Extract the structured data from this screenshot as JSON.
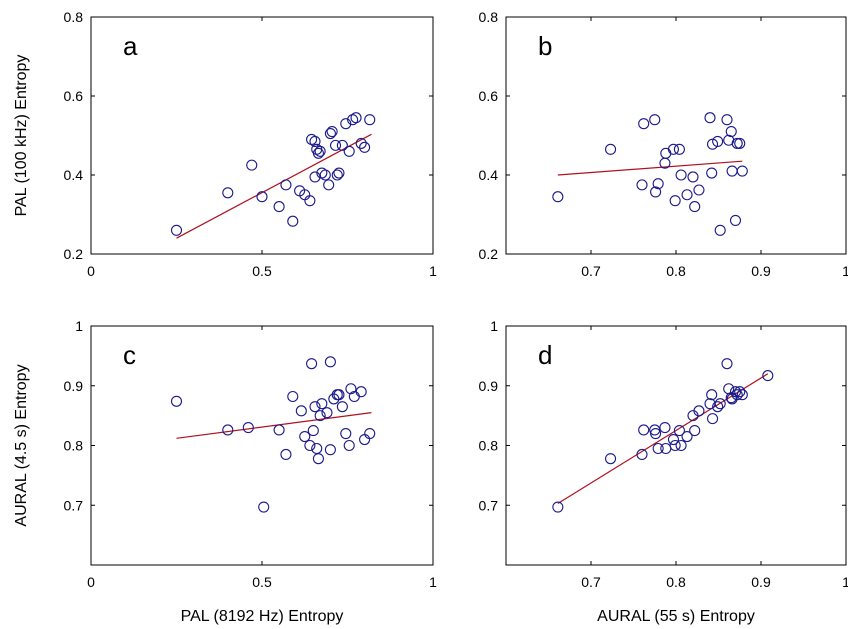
{
  "chart_data": [
    {
      "id": "a",
      "type": "scatter",
      "panel_label": "a",
      "xlim": [
        0,
        1
      ],
      "ylim": [
        0.2,
        0.8
      ],
      "xticks": [
        "0",
        "0.5",
        "1"
      ],
      "xtick_values": [
        0,
        0.5,
        1
      ],
      "yticks": [
        "0.2",
        "0.4",
        "0.6",
        "0.8"
      ],
      "ytick_values": [
        0.2,
        0.4,
        0.6,
        0.8
      ],
      "xlabel": "",
      "ylabel": "PAL (100 kHz) Entropy",
      "points": [
        [
          0.25,
          0.26
        ],
        [
          0.4,
          0.355
        ],
        [
          0.47,
          0.425
        ],
        [
          0.5,
          0.345
        ],
        [
          0.55,
          0.32
        ],
        [
          0.57,
          0.375
        ],
        [
          0.59,
          0.283
        ],
        [
          0.61,
          0.36
        ],
        [
          0.625,
          0.35
        ],
        [
          0.64,
          0.335
        ],
        [
          0.645,
          0.49
        ],
        [
          0.655,
          0.485
        ],
        [
          0.655,
          0.395
        ],
        [
          0.66,
          0.465
        ],
        [
          0.665,
          0.455
        ],
        [
          0.67,
          0.46
        ],
        [
          0.675,
          0.405
        ],
        [
          0.685,
          0.4
        ],
        [
          0.695,
          0.375
        ],
        [
          0.7,
          0.505
        ],
        [
          0.705,
          0.51
        ],
        [
          0.715,
          0.475
        ],
        [
          0.72,
          0.4
        ],
        [
          0.725,
          0.405
        ],
        [
          0.735,
          0.475
        ],
        [
          0.745,
          0.53
        ],
        [
          0.755,
          0.46
        ],
        [
          0.765,
          0.54
        ],
        [
          0.775,
          0.545
        ],
        [
          0.79,
          0.48
        ],
        [
          0.8,
          0.47
        ],
        [
          0.815,
          0.54
        ]
      ],
      "fit": [
        [
          0.25,
          0.24
        ],
        [
          0.82,
          0.503
        ]
      ]
    },
    {
      "id": "b",
      "type": "scatter",
      "panel_label": "b",
      "xlim": [
        0.6,
        1
      ],
      "ylim": [
        0.2,
        0.8
      ],
      "xticks": [
        "0.7",
        "0.8",
        "0.9",
        "1"
      ],
      "xtick_values": [
        0.7,
        0.8,
        0.9,
        1
      ],
      "yticks": [
        "0.2",
        "0.4",
        "0.6",
        "0.8"
      ],
      "ytick_values": [
        0.2,
        0.4,
        0.6,
        0.8
      ],
      "xlabel": "",
      "ylabel": "",
      "points": [
        [
          0.661,
          0.345
        ],
        [
          0.723,
          0.465
        ],
        [
          0.76,
          0.375
        ],
        [
          0.762,
          0.53
        ],
        [
          0.775,
          0.54
        ],
        [
          0.776,
          0.357
        ],
        [
          0.779,
          0.378
        ],
        [
          0.787,
          0.43
        ],
        [
          0.788,
          0.455
        ],
        [
          0.797,
          0.465
        ],
        [
          0.799,
          0.335
        ],
        [
          0.804,
          0.465
        ],
        [
          0.806,
          0.4
        ],
        [
          0.813,
          0.35
        ],
        [
          0.82,
          0.395
        ],
        [
          0.822,
          0.32
        ],
        [
          0.827,
          0.362
        ],
        [
          0.84,
          0.545
        ],
        [
          0.842,
          0.405
        ],
        [
          0.843,
          0.478
        ],
        [
          0.849,
          0.485
        ],
        [
          0.852,
          0.26
        ],
        [
          0.86,
          0.54
        ],
        [
          0.862,
          0.488
        ],
        [
          0.865,
          0.51
        ],
        [
          0.866,
          0.41
        ],
        [
          0.87,
          0.285
        ],
        [
          0.872,
          0.48
        ],
        [
          0.875,
          0.48
        ],
        [
          0.878,
          0.41
        ]
      ],
      "fit": [
        [
          0.661,
          0.4
        ],
        [
          0.878,
          0.435
        ]
      ]
    },
    {
      "id": "c",
      "type": "scatter",
      "panel_label": "c",
      "xlim": [
        0,
        1
      ],
      "ylim": [
        0.6,
        1
      ],
      "xticks": [
        "0",
        "0.5",
        "1"
      ],
      "xtick_values": [
        0,
        0.5,
        1
      ],
      "yticks": [
        "0.7",
        "0.8",
        "0.9",
        "1"
      ],
      "ytick_values": [
        0.7,
        0.8,
        0.9,
        1
      ],
      "xlabel": "PAL (8192 Hz) Entropy",
      "ylabel": "AURAL (4.5 s) Entropy",
      "points": [
        [
          0.25,
          0.874
        ],
        [
          0.4,
          0.826
        ],
        [
          0.46,
          0.83
        ],
        [
          0.505,
          0.697
        ],
        [
          0.55,
          0.826
        ],
        [
          0.57,
          0.785
        ],
        [
          0.59,
          0.882
        ],
        [
          0.615,
          0.858
        ],
        [
          0.625,
          0.815
        ],
        [
          0.64,
          0.8
        ],
        [
          0.645,
          0.937
        ],
        [
          0.65,
          0.825
        ],
        [
          0.655,
          0.865
        ],
        [
          0.66,
          0.795
        ],
        [
          0.665,
          0.778
        ],
        [
          0.67,
          0.85
        ],
        [
          0.675,
          0.87
        ],
        [
          0.69,
          0.855
        ],
        [
          0.7,
          0.94
        ],
        [
          0.7,
          0.793
        ],
        [
          0.71,
          0.878
        ],
        [
          0.72,
          0.885
        ],
        [
          0.725,
          0.885
        ],
        [
          0.735,
          0.865
        ],
        [
          0.745,
          0.82
        ],
        [
          0.755,
          0.8
        ],
        [
          0.76,
          0.895
        ],
        [
          0.77,
          0.882
        ],
        [
          0.79,
          0.89
        ],
        [
          0.8,
          0.81
        ],
        [
          0.815,
          0.82
        ]
      ],
      "fit": [
        [
          0.25,
          0.812
        ],
        [
          0.82,
          0.855
        ]
      ]
    },
    {
      "id": "d",
      "type": "scatter",
      "panel_label": "d",
      "xlim": [
        0.6,
        1
      ],
      "ylim": [
        0.6,
        1
      ],
      "xticks": [
        "0.7",
        "0.8",
        "0.9",
        "1"
      ],
      "xtick_values": [
        0.7,
        0.8,
        0.9,
        1
      ],
      "yticks": [
        "0.7",
        "0.8",
        "0.9",
        "1"
      ],
      "ytick_values": [
        0.7,
        0.8,
        0.9,
        1
      ],
      "xlabel": "AURAL (55 s) Entropy",
      "ylabel": "",
      "points": [
        [
          0.661,
          0.697
        ],
        [
          0.723,
          0.778
        ],
        [
          0.76,
          0.785
        ],
        [
          0.762,
          0.826
        ],
        [
          0.775,
          0.826
        ],
        [
          0.776,
          0.82
        ],
        [
          0.779,
          0.795
        ],
        [
          0.787,
          0.83
        ],
        [
          0.788,
          0.795
        ],
        [
          0.797,
          0.81
        ],
        [
          0.799,
          0.8
        ],
        [
          0.804,
          0.825
        ],
        [
          0.806,
          0.8
        ],
        [
          0.813,
          0.815
        ],
        [
          0.82,
          0.85
        ],
        [
          0.822,
          0.825
        ],
        [
          0.827,
          0.858
        ],
        [
          0.84,
          0.87
        ],
        [
          0.842,
          0.885
        ],
        [
          0.843,
          0.845
        ],
        [
          0.849,
          0.865
        ],
        [
          0.852,
          0.87
        ],
        [
          0.86,
          0.937
        ],
        [
          0.862,
          0.895
        ],
        [
          0.865,
          0.88
        ],
        [
          0.866,
          0.878
        ],
        [
          0.87,
          0.89
        ],
        [
          0.872,
          0.885
        ],
        [
          0.875,
          0.89
        ],
        [
          0.878,
          0.885
        ],
        [
          0.908,
          0.917
        ]
      ],
      "fit": [
        [
          0.661,
          0.703
        ],
        [
          0.908,
          0.92
        ]
      ]
    }
  ]
}
